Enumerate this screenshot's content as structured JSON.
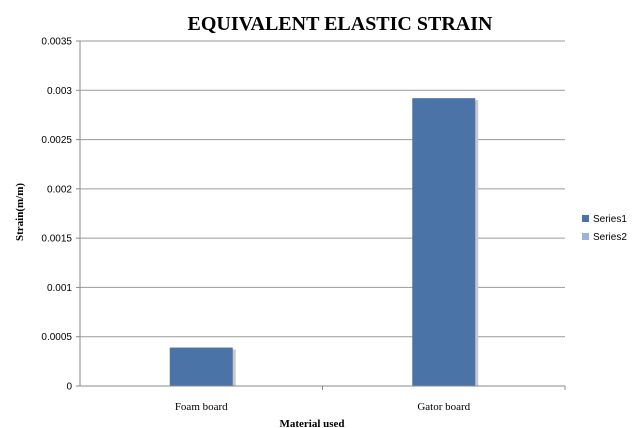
{
  "chart_data": {
    "type": "bar",
    "title": "EQUIVALENT ELASTIC STRAIN",
    "xlabel": "Material used",
    "ylabel": "Strain(m/m)",
    "categories": [
      "Foam board",
      "Gator board"
    ],
    "series": [
      {
        "name": "Series1",
        "values": [
          0.00039,
          0.00292
        ],
        "color": "#4a73a8"
      },
      {
        "name": "Series2",
        "values": [
          0,
          0
        ],
        "color": "#9ab3d6"
      }
    ],
    "ylim": [
      0,
      0.0035
    ],
    "yticks": [
      "0",
      "0.0005",
      "0.001",
      "0.0015",
      "0.002",
      "0.0025",
      "0.003",
      "0.0035"
    ],
    "ytick_values": [
      0,
      0.0005,
      0.001,
      0.0015,
      0.002,
      0.0025,
      0.003,
      0.0035
    ],
    "grid": true,
    "legend_position": "right"
  }
}
